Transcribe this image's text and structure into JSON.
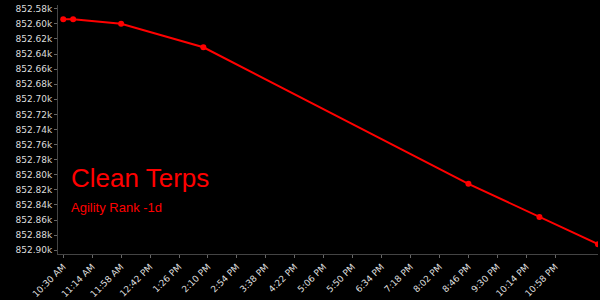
{
  "chart_data": {
    "type": "line",
    "title": "Clean Terps",
    "subtitle": "Agility Rank -1d",
    "x": [
      630,
      645,
      718,
      843,
      1246,
      1354,
      1443
    ],
    "values": [
      852594,
      852594,
      852600,
      852631,
      852812,
      852856,
      852892
    ],
    "color": "#ff0000",
    "marker": "circle",
    "grid": false,
    "xlim": [
      622,
      1443
    ],
    "xticks": [
      {
        "value": 630,
        "label": "10:30 AM"
      },
      {
        "value": 674,
        "label": "11:14 AM"
      },
      {
        "value": 718,
        "label": "11:58 AM"
      },
      {
        "value": 762,
        "label": "12:42 PM"
      },
      {
        "value": 806,
        "label": "1:26 PM"
      },
      {
        "value": 850,
        "label": "2:10 PM"
      },
      {
        "value": 894,
        "label": "2:54 PM"
      },
      {
        "value": 938,
        "label": "3:38 PM"
      },
      {
        "value": 982,
        "label": "4:22 PM"
      },
      {
        "value": 1026,
        "label": "5:06 PM"
      },
      {
        "value": 1070,
        "label": "5:50 PM"
      },
      {
        "value": 1114,
        "label": "6:34 PM"
      },
      {
        "value": 1158,
        "label": "7:18 PM"
      },
      {
        "value": 1202,
        "label": "8:02 PM"
      },
      {
        "value": 1246,
        "label": "8:46 PM"
      },
      {
        "value": 1290,
        "label": "9:30 PM"
      },
      {
        "value": 1334,
        "label": "10:14 PM"
      },
      {
        "value": 1378,
        "label": "10:58 PM"
      }
    ],
    "ylim": [
      852905,
      852575
    ],
    "yticks": [
      {
        "value": 852580,
        "label": "852.58k"
      },
      {
        "value": 852600,
        "label": "852.60k"
      },
      {
        "value": 852620,
        "label": "852.62k"
      },
      {
        "value": 852640,
        "label": "852.64k"
      },
      {
        "value": 852660,
        "label": "852.66k"
      },
      {
        "value": 852680,
        "label": "852.68k"
      },
      {
        "value": 852700,
        "label": "852.70k"
      },
      {
        "value": 852720,
        "label": "852.72k"
      },
      {
        "value": 852740,
        "label": "852.74k"
      },
      {
        "value": 852760,
        "label": "852.76k"
      },
      {
        "value": 852780,
        "label": "852.78k"
      },
      {
        "value": 852800,
        "label": "852.80k"
      },
      {
        "value": 852820,
        "label": "852.82k"
      },
      {
        "value": 852840,
        "label": "852.84k"
      },
      {
        "value": 852860,
        "label": "852.86k"
      },
      {
        "value": 852880,
        "label": "852.88k"
      },
      {
        "value": 852900,
        "label": "852.90k"
      }
    ]
  }
}
